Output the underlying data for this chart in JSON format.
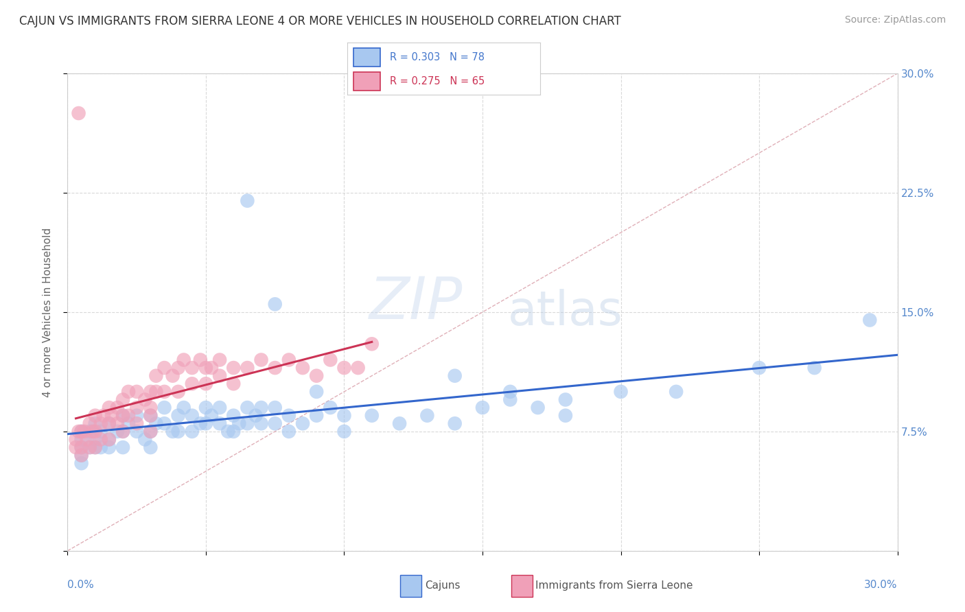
{
  "title": "CAJUN VS IMMIGRANTS FROM SIERRA LEONE 4 OR MORE VEHICLES IN HOUSEHOLD CORRELATION CHART",
  "source": "Source: ZipAtlas.com",
  "ylabel": "4 or more Vehicles in Household",
  "cajun_R": 0.303,
  "cajun_N": 78,
  "sierra_leone_R": 0.275,
  "sierra_leone_N": 65,
  "cajun_color": "#a8c8f0",
  "cajun_line_color": "#3366cc",
  "sierra_leone_color": "#f0a0b8",
  "sierra_leone_line_color": "#cc3355",
  "background_color": "#ffffff",
  "xmin": 0.0,
  "xmax": 0.3,
  "ymin": 0.0,
  "ymax": 0.3,
  "cajun_scatter_x": [
    0.005,
    0.005,
    0.005,
    0.005,
    0.005,
    0.008,
    0.008,
    0.01,
    0.01,
    0.01,
    0.012,
    0.012,
    0.015,
    0.015,
    0.015,
    0.018,
    0.02,
    0.02,
    0.02,
    0.022,
    0.025,
    0.025,
    0.028,
    0.03,
    0.03,
    0.03,
    0.032,
    0.035,
    0.035,
    0.038,
    0.04,
    0.04,
    0.042,
    0.045,
    0.045,
    0.048,
    0.05,
    0.05,
    0.052,
    0.055,
    0.055,
    0.058,
    0.06,
    0.06,
    0.062,
    0.065,
    0.065,
    0.068,
    0.07,
    0.07,
    0.075,
    0.075,
    0.08,
    0.08,
    0.085,
    0.09,
    0.09,
    0.095,
    0.1,
    0.1,
    0.11,
    0.12,
    0.13,
    0.14,
    0.15,
    0.16,
    0.17,
    0.18,
    0.2,
    0.22,
    0.14,
    0.16,
    0.18,
    0.25,
    0.27,
    0.29,
    0.065,
    0.075
  ],
  "cajun_scatter_y": [
    0.07,
    0.075,
    0.065,
    0.06,
    0.055,
    0.075,
    0.065,
    0.08,
    0.07,
    0.065,
    0.075,
    0.065,
    0.08,
    0.07,
    0.065,
    0.075,
    0.085,
    0.075,
    0.065,
    0.08,
    0.085,
    0.075,
    0.07,
    0.085,
    0.075,
    0.065,
    0.08,
    0.09,
    0.08,
    0.075,
    0.085,
    0.075,
    0.09,
    0.085,
    0.075,
    0.08,
    0.09,
    0.08,
    0.085,
    0.09,
    0.08,
    0.075,
    0.085,
    0.075,
    0.08,
    0.09,
    0.08,
    0.085,
    0.09,
    0.08,
    0.09,
    0.08,
    0.085,
    0.075,
    0.08,
    0.1,
    0.085,
    0.09,
    0.085,
    0.075,
    0.085,
    0.08,
    0.085,
    0.08,
    0.09,
    0.095,
    0.09,
    0.085,
    0.1,
    0.1,
    0.11,
    0.1,
    0.095,
    0.115,
    0.115,
    0.145,
    0.22,
    0.155
  ],
  "sierra_leone_scatter_x": [
    0.003,
    0.003,
    0.004,
    0.005,
    0.005,
    0.005,
    0.006,
    0.007,
    0.008,
    0.008,
    0.009,
    0.01,
    0.01,
    0.01,
    0.012,
    0.012,
    0.013,
    0.015,
    0.015,
    0.015,
    0.016,
    0.018,
    0.018,
    0.02,
    0.02,
    0.02,
    0.022,
    0.022,
    0.025,
    0.025,
    0.025,
    0.028,
    0.03,
    0.03,
    0.03,
    0.03,
    0.032,
    0.032,
    0.035,
    0.035,
    0.038,
    0.04,
    0.04,
    0.042,
    0.045,
    0.045,
    0.048,
    0.05,
    0.05,
    0.052,
    0.055,
    0.055,
    0.06,
    0.06,
    0.065,
    0.07,
    0.075,
    0.08,
    0.085,
    0.09,
    0.095,
    0.1,
    0.105,
    0.11,
    0.004
  ],
  "sierra_leone_scatter_y": [
    0.07,
    0.065,
    0.075,
    0.075,
    0.065,
    0.06,
    0.075,
    0.07,
    0.08,
    0.065,
    0.075,
    0.085,
    0.075,
    0.065,
    0.08,
    0.07,
    0.085,
    0.09,
    0.08,
    0.07,
    0.085,
    0.09,
    0.08,
    0.095,
    0.085,
    0.075,
    0.1,
    0.085,
    0.1,
    0.09,
    0.08,
    0.095,
    0.1,
    0.09,
    0.085,
    0.075,
    0.11,
    0.1,
    0.115,
    0.1,
    0.11,
    0.115,
    0.1,
    0.12,
    0.115,
    0.105,
    0.12,
    0.115,
    0.105,
    0.115,
    0.12,
    0.11,
    0.115,
    0.105,
    0.115,
    0.12,
    0.115,
    0.12,
    0.115,
    0.11,
    0.12,
    0.115,
    0.115,
    0.13,
    0.275
  ]
}
